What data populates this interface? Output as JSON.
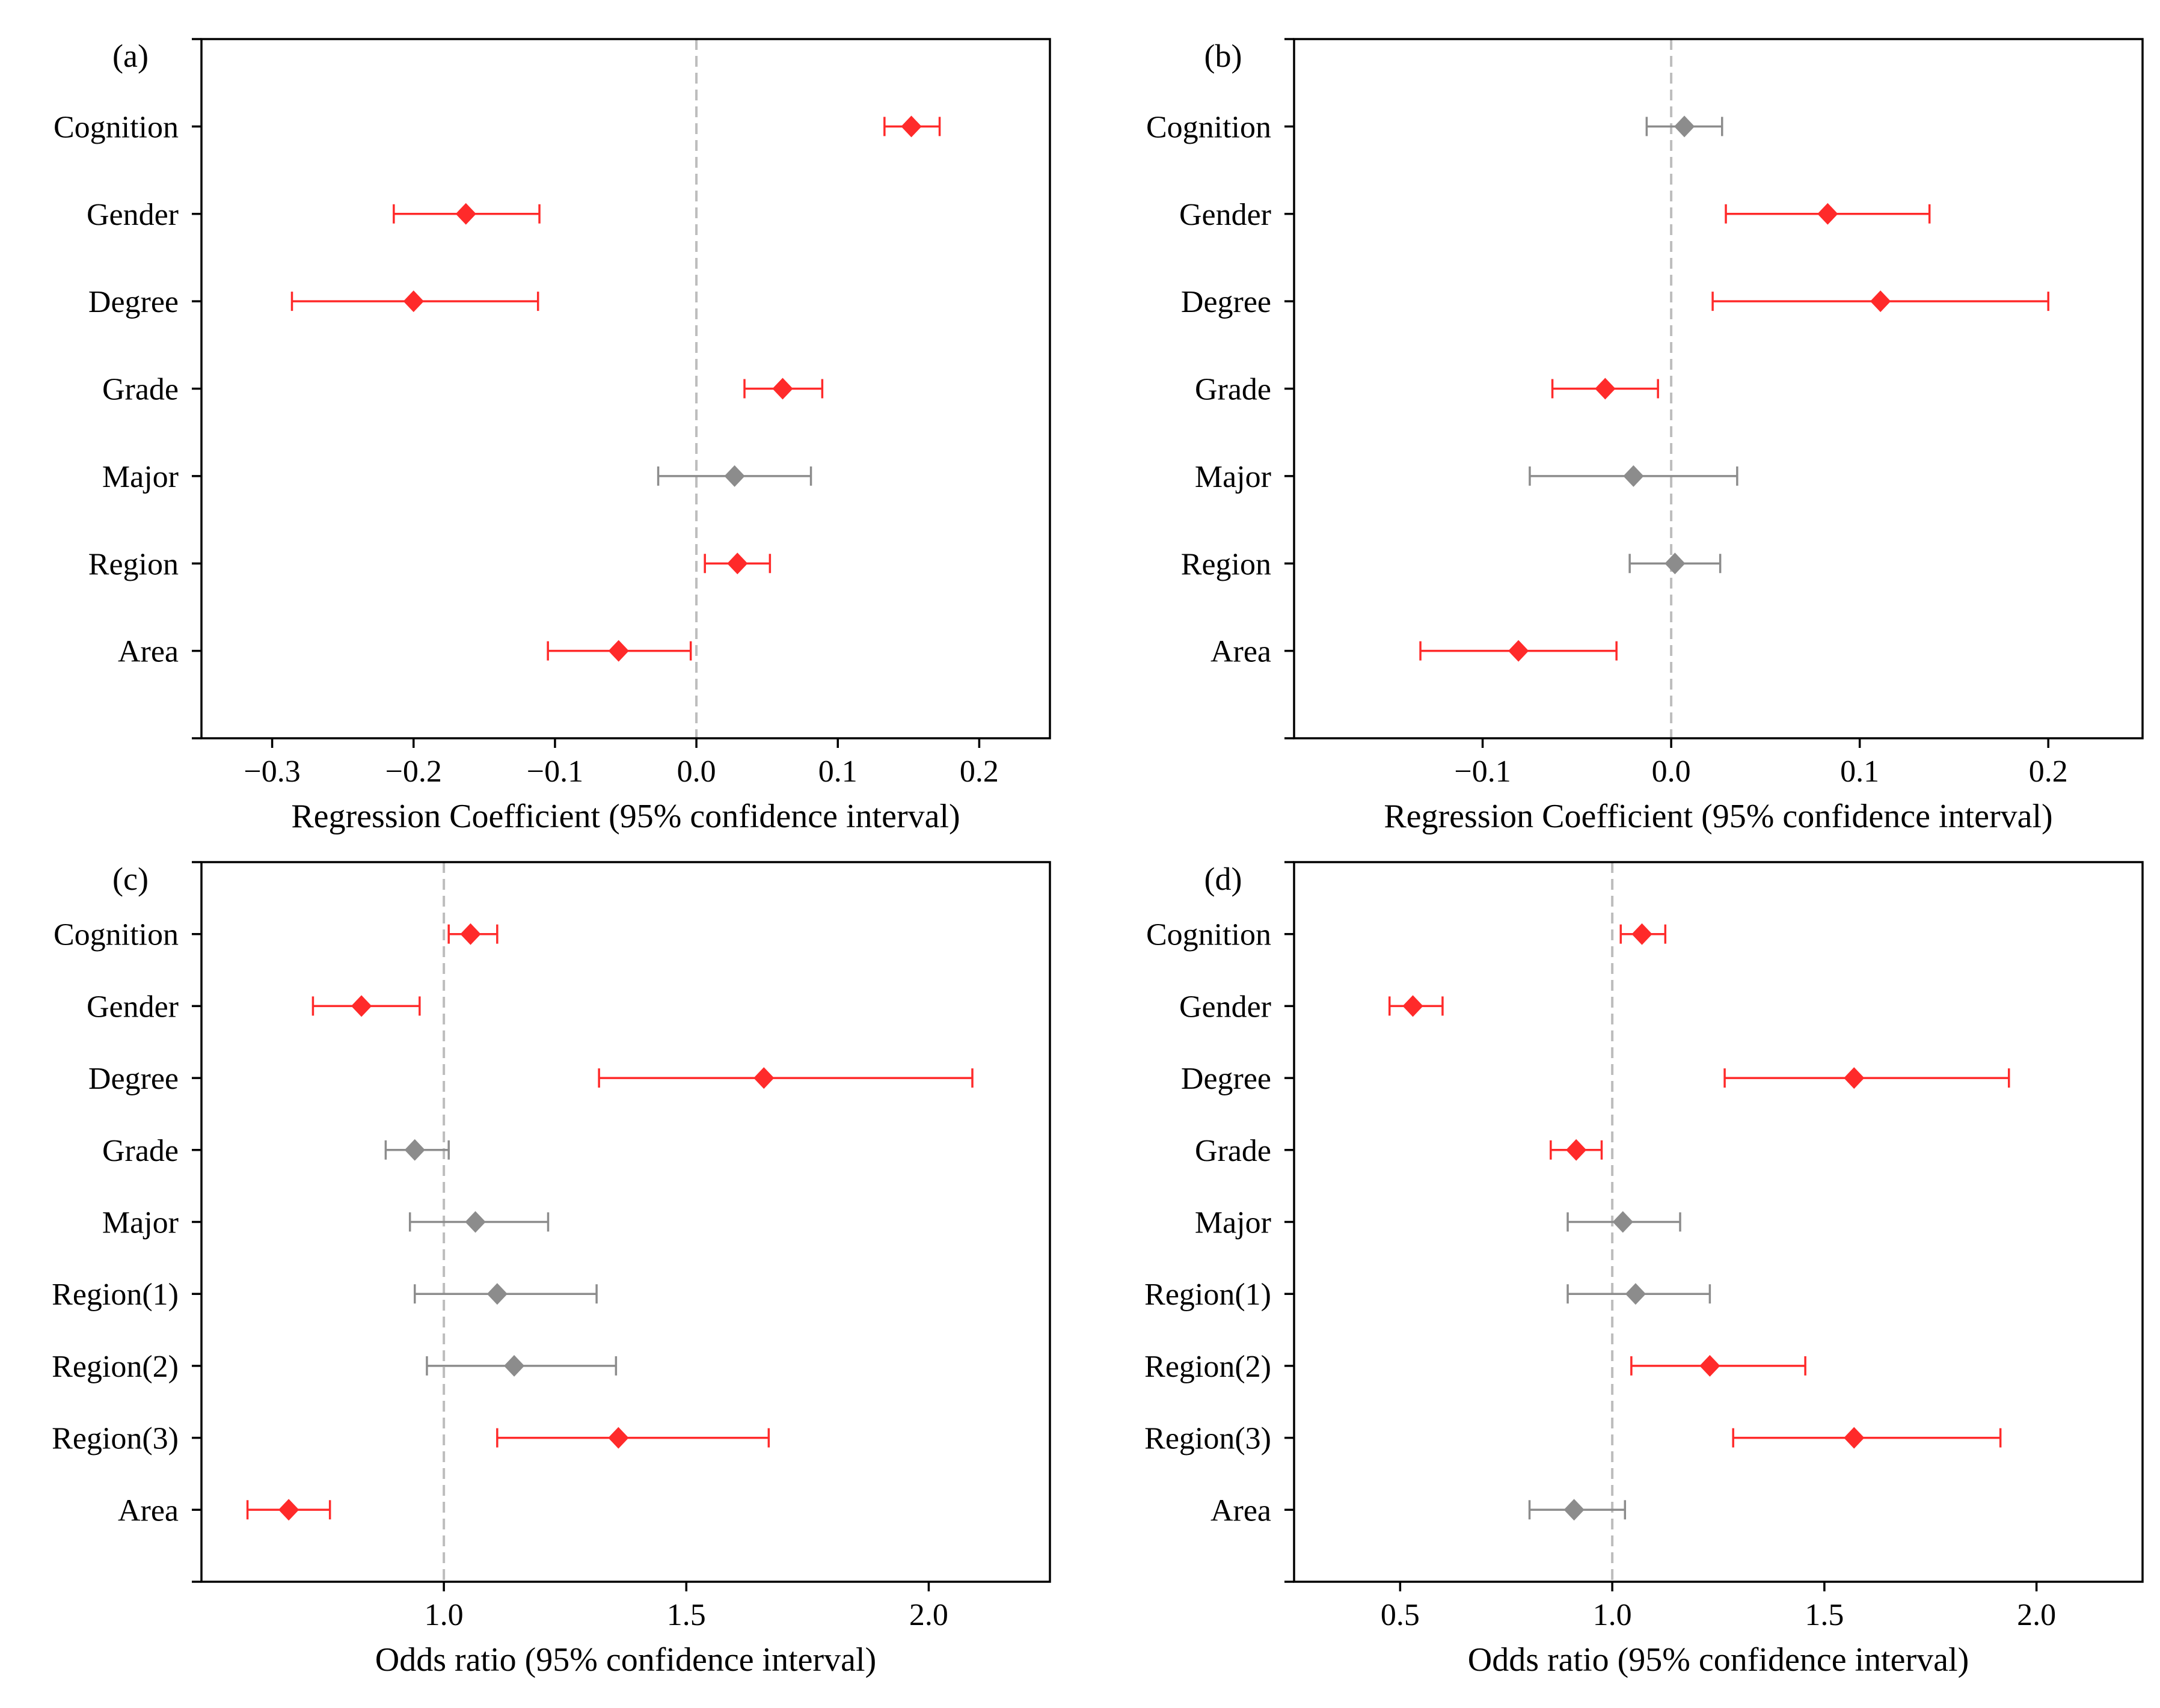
{
  "colors": {
    "significant": "#ff2a2a",
    "nonsignificant": "#8c8c8c",
    "reference_line": "#bdbdbd",
    "axis": "#000000"
  },
  "chart_data": [
    {
      "type": "forest",
      "panel": "(a)",
      "xlabel": "Regression Coefficient (95% confidence interval)",
      "xlim": [
        -0.35,
        0.25
      ],
      "xticks": [
        -0.3,
        -0.2,
        -0.1,
        0.0,
        0.1,
        0.2
      ],
      "xtick_labels": [
        "−0.3",
        "−0.2",
        "−0.1",
        "0.0",
        "0.1",
        "0.2"
      ],
      "reference_line": 0.0,
      "categories": [
        "Cognition",
        "Gender",
        "Degree",
        "Grade",
        "Major",
        "Region",
        "Area"
      ],
      "estimate": [
        0.152,
        -0.163,
        -0.2,
        0.061,
        0.027,
        0.029,
        -0.055
      ],
      "lower": [
        0.133,
        -0.214,
        -0.286,
        0.034,
        -0.027,
        0.006,
        -0.105
      ],
      "upper": [
        0.172,
        -0.111,
        -0.112,
        0.089,
        0.081,
        0.052,
        -0.004
      ],
      "significant": [
        true,
        true,
        true,
        true,
        false,
        true,
        true
      ]
    },
    {
      "type": "forest",
      "panel": "(b)",
      "xlabel": "Regression Coefficient (95% confidence interval)",
      "xlim": [
        -0.2,
        0.25
      ],
      "xticks": [
        -0.1,
        0.0,
        0.1,
        0.2
      ],
      "xtick_labels": [
        "−0.1",
        "0.0",
        "0.1",
        "0.2"
      ],
      "reference_line": 0.0,
      "categories": [
        "Cognition",
        "Gender",
        "Degree",
        "Grade",
        "Major",
        "Region",
        "Area"
      ],
      "estimate": [
        0.007,
        0.083,
        0.111,
        -0.035,
        -0.02,
        0.002,
        -0.081
      ],
      "lower": [
        -0.013,
        0.029,
        0.022,
        -0.063,
        -0.075,
        -0.022,
        -0.133
      ],
      "upper": [
        0.027,
        0.137,
        0.2,
        -0.007,
        0.035,
        0.026,
        -0.029
      ],
      "significant": [
        false,
        true,
        true,
        true,
        false,
        false,
        true
      ]
    },
    {
      "type": "forest",
      "panel": "(c)",
      "xlabel": "Odds ratio (95% confidence interval)",
      "xlim": [
        0.5,
        2.25
      ],
      "xticks": [
        1.0,
        1.5,
        2.0
      ],
      "xtick_labels": [
        "1.0",
        "1.5",
        "2.0"
      ],
      "reference_line": 1.0,
      "categories": [
        "Cognition",
        "Gender",
        "Degree",
        "Grade",
        "Major",
        "Region(1)",
        "Region(2)",
        "Region(3)",
        "Area"
      ],
      "estimate": [
        1.055,
        0.83,
        1.66,
        0.94,
        1.065,
        1.11,
        1.145,
        1.36,
        0.68
      ],
      "lower": [
        1.01,
        0.73,
        1.32,
        0.88,
        0.93,
        0.94,
        0.965,
        1.11,
        0.595
      ],
      "upper": [
        1.11,
        0.95,
        2.09,
        1.01,
        1.215,
        1.315,
        1.355,
        1.67,
        0.765
      ],
      "significant": [
        true,
        true,
        true,
        false,
        false,
        false,
        false,
        true,
        true
      ]
    },
    {
      "type": "forest",
      "panel": "(d)",
      "xlabel": "Odds ratio (95% confidence interval)",
      "xlim": [
        0.25,
        2.25
      ],
      "xticks": [
        0.5,
        1.0,
        1.5,
        2.0
      ],
      "xtick_labels": [
        "0.5",
        "1.0",
        "1.5",
        "2.0"
      ],
      "reference_line": 1.0,
      "categories": [
        "Cognition",
        "Gender",
        "Degree",
        "Grade",
        "Major",
        "Region(1)",
        "Region(2)",
        "Region(3)",
        "Area"
      ],
      "estimate": [
        1.07,
        0.53,
        1.57,
        0.915,
        1.025,
        1.055,
        1.23,
        1.57,
        0.91
      ],
      "lower": [
        1.02,
        0.475,
        1.265,
        0.855,
        0.895,
        0.895,
        1.045,
        1.285,
        0.805
      ],
      "upper": [
        1.125,
        0.6,
        1.935,
        0.975,
        1.16,
        1.23,
        1.455,
        1.915,
        1.03
      ],
      "significant": [
        true,
        true,
        true,
        true,
        false,
        false,
        true,
        true,
        false
      ]
    }
  ]
}
